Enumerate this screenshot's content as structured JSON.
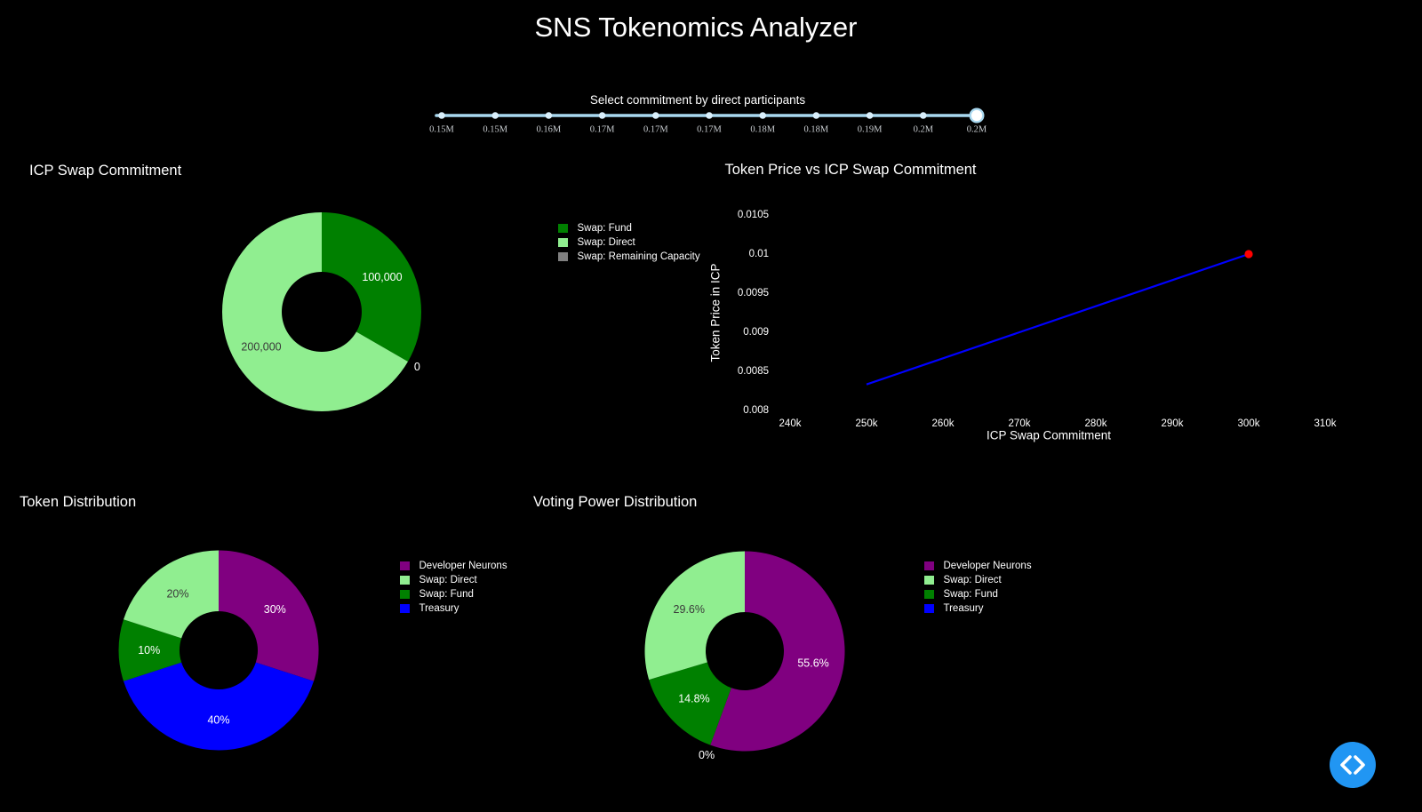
{
  "page": {
    "title": "SNS Tokenomics Analyzer",
    "background": "#000000"
  },
  "slider": {
    "label": "Select commitment by direct participants",
    "tick_labels": [
      "0.15M",
      "0.15M",
      "0.16M",
      "0.17M",
      "0.17M",
      "0.17M",
      "0.18M",
      "0.18M",
      "0.19M",
      "0.2M",
      "0.2M"
    ],
    "selected_index": 10,
    "colors": {
      "track": "#A9D8EF",
      "dot": "#D9EFFB",
      "handle_fill": "#FFFFFF",
      "handle_ring": "#A9D8EF",
      "tick_text": "#C8CCD0",
      "label_text": "#FFFFFF"
    }
  },
  "chart_data": [
    {
      "id": "icp_swap_commitment",
      "type": "pie",
      "title": "ICP Swap Commitment",
      "hole": 0.4,
      "direction": "clockwise",
      "start_angle_deg": 0,
      "slices": [
        {
          "label": "Swap: Fund",
          "value": 100000,
          "text": "100,000",
          "color": "#008000",
          "text_color": "#FFFFFF",
          "text_position": "inside"
        },
        {
          "label": "Swap: Remaining Capacity",
          "value": 0,
          "text": "0",
          "color": "#808080",
          "text_color": "#FFFFFF",
          "text_position": "outside"
        },
        {
          "label": "Swap: Direct",
          "value": 200000,
          "text": "200,000",
          "color": "#90EE90",
          "text_color": "#3A3A3A",
          "text_position": "inside"
        }
      ],
      "legend": [
        {
          "label": "Swap: Fund",
          "color": "#008000"
        },
        {
          "label": "Swap: Direct",
          "color": "#90EE90"
        },
        {
          "label": "Swap: Remaining Capacity",
          "color": "#808080"
        }
      ],
      "legend_position": "right"
    },
    {
      "id": "token_price_vs_icp_swap_commitment",
      "type": "line",
      "title": "Token Price vs ICP Swap Commitment",
      "xlabel": "ICP Swap Commitment",
      "ylabel": "Token Price in ICP",
      "line": {
        "x": [
          250000,
          300000
        ],
        "y": [
          0.008333,
          0.01
        ],
        "color": "#0000FF"
      },
      "marker": {
        "x": 300000,
        "y": 0.01,
        "color": "#FF0000"
      },
      "xticks": {
        "values": [
          240000,
          250000,
          260000,
          270000,
          280000,
          290000,
          300000,
          310000
        ],
        "labels": [
          "240k",
          "250k",
          "260k",
          "270k",
          "280k",
          "290k",
          "300k",
          "310k"
        ]
      },
      "yticks": {
        "values": [
          0.008,
          0.0085,
          0.009,
          0.0095,
          0.01,
          0.0105
        ],
        "labels": [
          "0.008",
          "0.0085",
          "0.009",
          "0.0095",
          "0.01",
          "0.0105"
        ]
      },
      "xrange": [
        238000,
        312000
      ],
      "yrange": [
        0.0078,
        0.01075
      ],
      "grid": false,
      "tick_color": "#FFFFFF"
    },
    {
      "id": "token_distribution",
      "type": "pie",
      "title": "Token Distribution",
      "hole": 0.4,
      "direction": "clockwise",
      "start_angle_deg": 0,
      "slices": [
        {
          "label": "Developer Neurons",
          "value": 30,
          "text": "30%",
          "color": "#800080",
          "text_color": "#FFFFFF",
          "text_position": "inside"
        },
        {
          "label": "Treasury",
          "value": 40,
          "text": "40%",
          "color": "#0000FF",
          "text_color": "#FFFFFF",
          "text_position": "inside"
        },
        {
          "label": "Swap: Fund",
          "value": 10,
          "text": "10%",
          "color": "#008000",
          "text_color": "#FFFFFF",
          "text_position": "inside"
        },
        {
          "label": "Swap: Direct",
          "value": 20,
          "text": "20%",
          "color": "#90EE90",
          "text_color": "#3A3A3A",
          "text_position": "inside"
        }
      ],
      "legend": [
        {
          "label": "Developer Neurons",
          "color": "#800080"
        },
        {
          "label": "Swap: Direct",
          "color": "#90EE90"
        },
        {
          "label": "Swap: Fund",
          "color": "#008000"
        },
        {
          "label": "Treasury",
          "color": "#0000FF"
        }
      ],
      "legend_position": "right"
    },
    {
      "id": "voting_power_distribution",
      "type": "pie",
      "title": "Voting Power Distribution",
      "hole": 0.4,
      "direction": "clockwise",
      "start_angle_deg": 0,
      "slices": [
        {
          "label": "Developer Neurons",
          "value": 55.6,
          "text": "55.6%",
          "color": "#800080",
          "text_color": "#FFFFFF",
          "text_position": "inside"
        },
        {
          "label": "Treasury",
          "value": 0,
          "text": "0%",
          "color": "#0000FF",
          "text_color": "#FFFFFF",
          "text_position": "outside"
        },
        {
          "label": "Swap: Fund",
          "value": 14.8,
          "text": "14.8%",
          "color": "#008000",
          "text_color": "#FFFFFF",
          "text_position": "inside"
        },
        {
          "label": "Swap: Direct",
          "value": 29.6,
          "text": "29.6%",
          "color": "#90EE90",
          "text_color": "#3A3A3A",
          "text_position": "inside"
        }
      ],
      "legend": [
        {
          "label": "Developer Neurons",
          "color": "#800080"
        },
        {
          "label": "Swap: Direct",
          "color": "#90EE90"
        },
        {
          "label": "Swap: Fund",
          "color": "#008000"
        },
        {
          "label": "Treasury",
          "color": "#0000FF"
        }
      ],
      "legend_position": "right"
    }
  ],
  "fab": {
    "background": "#2196F3",
    "icon": "code-chevrons"
  }
}
